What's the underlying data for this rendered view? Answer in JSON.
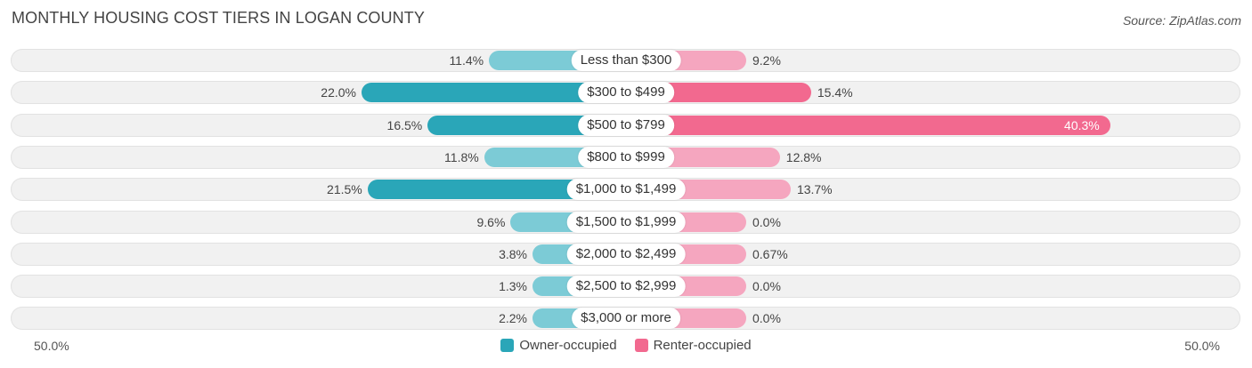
{
  "header": {
    "title": "MONTHLY HOUSING COST TIERS IN LOGAN COUNTY",
    "source": "Source: ZipAtlas.com"
  },
  "colors": {
    "owner_strong": "#2aa6b8",
    "owner_light": "#7ccbd6",
    "renter_strong": "#f2698f",
    "renter_light": "#f5a6bf",
    "row_bg": "#f1f1f1"
  },
  "chart_data": {
    "type": "bar",
    "orientation": "horizontal-diverging",
    "title": "MONTHLY HOUSING COST TIERS IN LOGAN COUNTY",
    "categories": [
      "Less than $300",
      "$300 to $499",
      "$500 to $799",
      "$800 to $999",
      "$1,000 to $1,499",
      "$1,500 to $1,999",
      "$2,000 to $2,499",
      "$2,500 to $2,999",
      "$3,000 or more"
    ],
    "series": [
      {
        "name": "Owner-occupied",
        "values": [
          11.4,
          22.0,
          16.5,
          11.8,
          21.5,
          9.6,
          3.8,
          1.3,
          2.2
        ],
        "labels": [
          "11.4%",
          "22.0%",
          "16.5%",
          "11.8%",
          "21.5%",
          "9.6%",
          "3.8%",
          "1.3%",
          "2.2%"
        ]
      },
      {
        "name": "Renter-occupied",
        "values": [
          9.2,
          15.4,
          40.3,
          12.8,
          13.7,
          0.0,
          0.67,
          0.0,
          0.0
        ],
        "labels": [
          "9.2%",
          "15.4%",
          "40.3%",
          "12.8%",
          "13.7%",
          "0.0%",
          "0.67%",
          "0.0%",
          "0.0%"
        ]
      }
    ],
    "xlim": [
      -50,
      50
    ],
    "axis_labels": {
      "left": "50.0%",
      "right": "50.0%"
    },
    "legend_position": "bottom-center"
  }
}
